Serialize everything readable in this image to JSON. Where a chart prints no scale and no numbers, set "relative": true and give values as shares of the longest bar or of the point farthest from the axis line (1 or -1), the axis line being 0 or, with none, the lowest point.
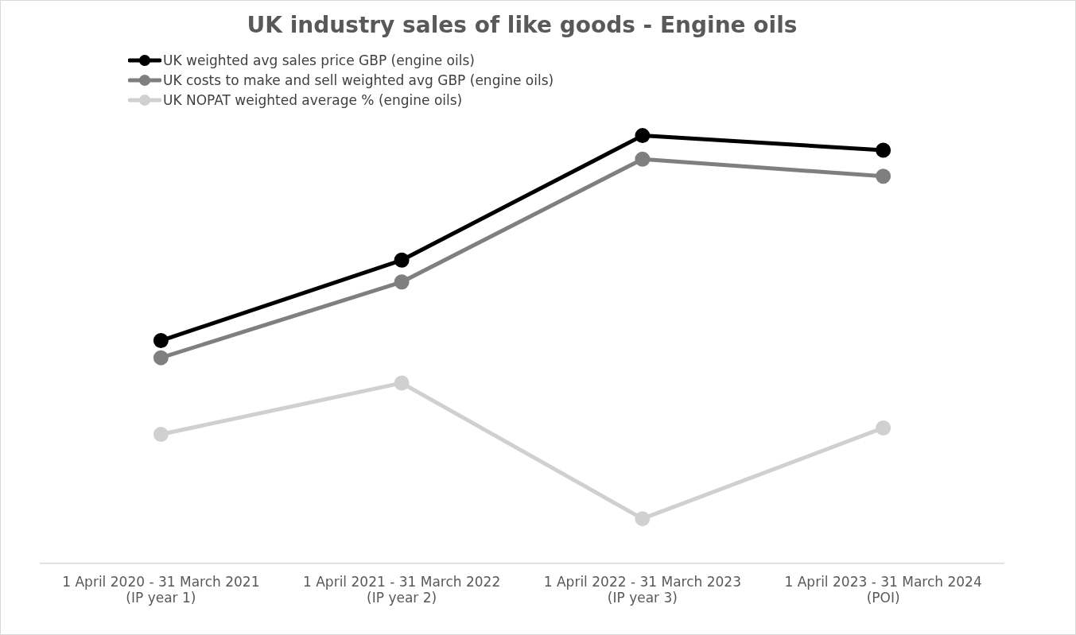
{
  "chart_data": {
    "type": "line",
    "title": "UK industry sales of like goods - Engine oils",
    "categories": [
      "1 April 2020 - 31 March 2021\n(IP year 1)",
      "1 April 2021 - 31 March 2022\n(IP year 2)",
      "1 April 2022 - 31 March 2023\n(IP year 3)",
      "1 April 2023 - 31 March 2024\n(POI)"
    ],
    "relative": true,
    "legend": "top left",
    "marker": "circle",
    "grid": false,
    "series": [
      {
        "name": "UK weighted avg sales price GBP (engine oils)",
        "color": "#000000",
        "values": [
          0.521,
          0.709,
          1,
          0.966
        ]
      },
      {
        "name": "UK costs to make and sell weighted avg GBP (engine oils)",
        "color": "#7f7f7f",
        "values": [
          0.481,
          0.658,
          0.945,
          0.905
        ]
      },
      {
        "name": "UK NOPAT weighted average % (engine oils)",
        "color": "#d0d0d0",
        "values": [
          0.302,
          0.422,
          0.105,
          0.317
        ]
      }
    ]
  }
}
